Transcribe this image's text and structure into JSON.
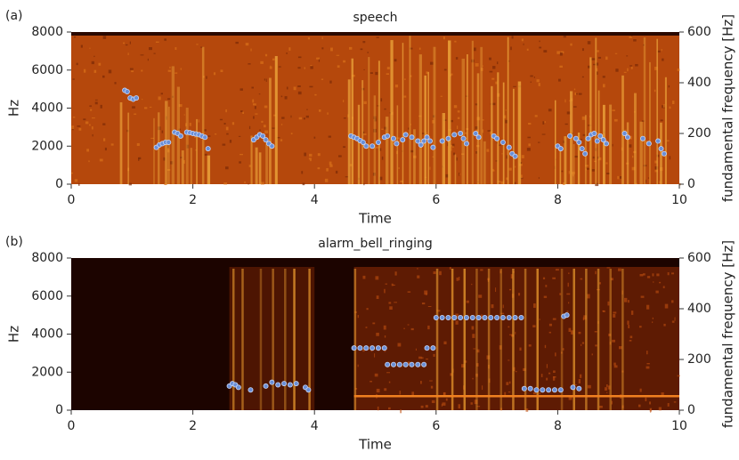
{
  "chart_data": [
    {
      "type": "scatter",
      "label": "(a)",
      "title": "speech",
      "xlabel": "Time",
      "ylabel": "Hz",
      "y2label": "fundamental frequency [Hz]",
      "xlim": [
        0,
        10
      ],
      "xticks": [
        0,
        2,
        4,
        6,
        8,
        10
      ],
      "ylim": [
        0,
        8000
      ],
      "yticks": [
        0,
        2000,
        4000,
        6000,
        8000
      ],
      "y2lim": [
        0,
        600
      ],
      "y2ticks": [
        0,
        200,
        400,
        600
      ],
      "background": "speech",
      "series": [
        {
          "color": "#6a8fd8",
          "axis": "y2",
          "x": [
            0.88,
            0.92,
            0.97,
            1.02,
            1.07,
            1.4,
            1.45,
            1.5,
            1.55,
            1.6,
            1.7,
            1.75,
            1.8,
            1.9,
            1.95,
            2.0,
            2.05,
            2.1,
            2.15,
            2.2,
            2.25,
            3.0,
            3.05,
            3.1,
            3.15,
            3.2,
            3.25,
            3.3,
            4.6,
            4.65,
            4.7,
            4.75,
            4.8,
            4.85,
            4.95,
            5.05,
            5.15,
            5.2,
            5.3,
            5.35,
            5.45,
            5.5,
            5.6,
            5.7,
            5.75,
            5.8,
            5.85,
            5.9,
            5.95,
            6.1,
            6.2,
            6.3,
            6.4,
            6.45,
            6.5,
            6.65,
            6.7,
            6.95,
            7.0,
            7.1,
            7.2,
            7.25,
            7.3,
            8.0,
            8.05,
            8.2,
            8.3,
            8.35,
            8.4,
            8.45,
            8.5,
            8.55,
            8.6,
            8.65,
            8.7,
            8.75,
            8.8,
            9.1,
            9.15,
            9.4,
            9.5,
            9.65,
            9.7,
            9.75
          ],
          "values": [
            370,
            365,
            340,
            335,
            340,
            145,
            155,
            160,
            165,
            165,
            205,
            200,
            190,
            205,
            203,
            200,
            198,
            195,
            190,
            185,
            140,
            175,
            185,
            195,
            190,
            175,
            160,
            150,
            190,
            185,
            180,
            172,
            165,
            150,
            150,
            165,
            185,
            190,
            180,
            160,
            175,
            195,
            185,
            170,
            155,
            170,
            185,
            170,
            145,
            170,
            180,
            195,
            200,
            180,
            160,
            200,
            185,
            190,
            180,
            165,
            145,
            120,
            110,
            150,
            140,
            190,
            180,
            165,
            140,
            120,
            180,
            195,
            200,
            170,
            190,
            175,
            160,
            200,
            185,
            180,
            160,
            170,
            140,
            120
          ]
        }
      ]
    },
    {
      "type": "scatter",
      "label": "(b)",
      "title": "alarm_bell_ringing",
      "xlabel": "Time",
      "ylabel": "Hz",
      "y2label": "fundamental frequency [Hz]",
      "xlim": [
        0,
        10
      ],
      "xticks": [
        0,
        2,
        4,
        6,
        8,
        10
      ],
      "ylim": [
        0,
        8000
      ],
      "yticks": [
        0,
        2000,
        4000,
        6000,
        8000
      ],
      "y2lim": [
        0,
        600
      ],
      "y2ticks": [
        0,
        200,
        400,
        600
      ],
      "background": "alarm",
      "series": [
        {
          "color": "#6a8fd8",
          "axis": "y2",
          "x": [
            2.6,
            2.65,
            2.7,
            2.75,
            2.95,
            3.2,
            3.3,
            3.4,
            3.5,
            3.6,
            3.7,
            3.85,
            3.9,
            4.65,
            4.75,
            4.85,
            4.95,
            5.05,
            5.15,
            5.2,
            5.3,
            5.4,
            5.5,
            5.6,
            5.7,
            5.8,
            5.85,
            5.95,
            6.0,
            6.1,
            6.2,
            6.3,
            6.4,
            6.5,
            6.6,
            6.7,
            6.8,
            6.9,
            7.0,
            7.1,
            7.2,
            7.3,
            7.4,
            7.45,
            7.55,
            7.65,
            7.75,
            7.85,
            7.95,
            8.05,
            8.1,
            8.15,
            8.25,
            8.35
          ],
          "values": [
            95,
            105,
            100,
            90,
            80,
            95,
            110,
            100,
            105,
            100,
            105,
            90,
            80,
            245,
            245,
            245,
            245,
            245,
            245,
            180,
            180,
            180,
            180,
            180,
            180,
            180,
            245,
            245,
            365,
            365,
            365,
            365,
            365,
            365,
            365,
            365,
            365,
            365,
            365,
            365,
            365,
            365,
            365,
            85,
            85,
            80,
            80,
            80,
            80,
            80,
            370,
            375,
            90,
            85
          ]
        }
      ]
    }
  ]
}
